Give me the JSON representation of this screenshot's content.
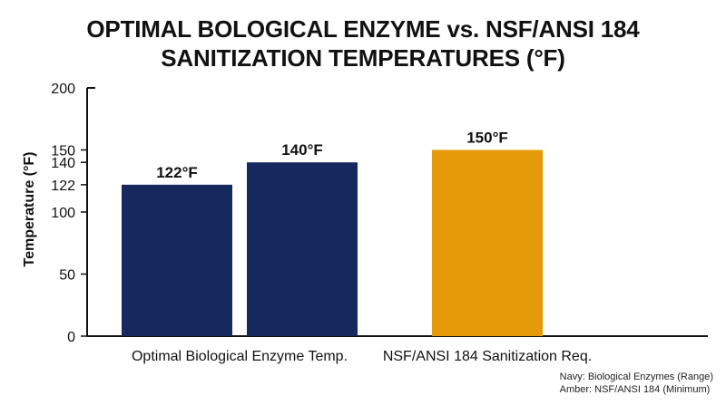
{
  "chart_data": {
    "type": "bar",
    "title_lines": [
      "OPTIMAL BOLOGICAL ENZYME vs. NSF/ANSI 184",
      "SANITIZATION TEMPERATURES (°F)"
    ],
    "ylabel": "Temperature (°F)",
    "xlabel": "",
    "ylim": [
      0,
      200
    ],
    "yticks": [
      0,
      50,
      100,
      122,
      140,
      150,
      200
    ],
    "categories": [
      "Optimal Biological Enzyme Temp.",
      "NSF/ANSI 184 Sanitization Req."
    ],
    "bars": [
      {
        "category": 0,
        "value": 122,
        "label": "122°F",
        "color": "#16285e"
      },
      {
        "category": 0,
        "value": 140,
        "label": "140°F",
        "color": "#16285e"
      },
      {
        "category": 1,
        "value": 150,
        "label": "150°F",
        "color": "#e59a0a"
      }
    ],
    "grid": false,
    "notes": [
      "Navy: Biological Enzymes (Range)",
      "Amber: NSF/ANSI 184 (Minimum)"
    ]
  },
  "colors": {
    "navy": "#16285e",
    "amber": "#e59a0a",
    "axis": "#111111"
  }
}
